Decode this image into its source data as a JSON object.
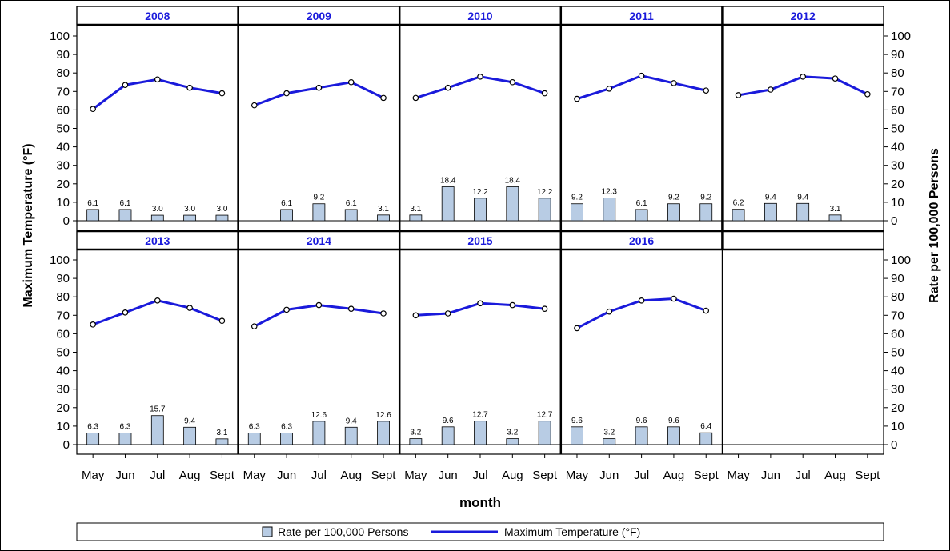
{
  "chart_data": {
    "type": "bar",
    "layout": "panel-grid",
    "ylabel_left": "Maximum Temperature (°F)",
    "ylabel_right": "Rate per 100,000 Persons",
    "xlabel": "month",
    "categories": [
      "May",
      "Jun",
      "Jul",
      "Aug",
      "Sept"
    ],
    "ylim": [
      0,
      100
    ],
    "yticks": [
      0,
      10,
      20,
      30,
      40,
      50,
      60,
      70,
      80,
      90,
      100
    ],
    "grid": false,
    "legend_placement": "bottom",
    "colors": {
      "bar_fill": "#b8cce4",
      "line": "#1a1adb",
      "panel_title": "#1a1adb",
      "marker_fill": "#ffffff"
    },
    "legend": [
      {
        "label": "Rate per 100,000 Persons",
        "kind": "bar"
      },
      {
        "label": "Maximum Temperature (°F)",
        "kind": "line"
      }
    ],
    "panels": [
      {
        "year": "2008",
        "rate": [
          6.1,
          6.1,
          3.0,
          3.0,
          3.0
        ],
        "rate_labels": [
          "6.1",
          "6.1",
          "3.0",
          "3.0",
          "3.0"
        ],
        "temp": [
          60.5,
          73.5,
          76.5,
          72,
          69
        ]
      },
      {
        "year": "2009",
        "rate": [
          null,
          6.1,
          9.2,
          6.1,
          3.1
        ],
        "rate_labels": [
          null,
          "6.1",
          "9.2",
          "6.1",
          "3.1"
        ],
        "temp": [
          62.5,
          69,
          72,
          75,
          66.5
        ]
      },
      {
        "year": "2010",
        "rate": [
          3.1,
          18.4,
          12.2,
          18.4,
          12.2
        ],
        "rate_labels": [
          "3.1",
          "18.4",
          "12.2",
          "18.4",
          "12.2"
        ],
        "temp": [
          66.5,
          72,
          78,
          75,
          69
        ]
      },
      {
        "year": "2011",
        "rate": [
          9.2,
          12.3,
          6.1,
          9.2,
          9.2
        ],
        "rate_labels": [
          "9.2",
          "12.3",
          "6.1",
          "9.2",
          "9.2"
        ],
        "temp": [
          66,
          71.5,
          78.5,
          74.5,
          70.5
        ]
      },
      {
        "year": "2012",
        "rate": [
          6.2,
          9.4,
          9.4,
          3.1,
          null
        ],
        "rate_labels": [
          "6.2",
          "9.4",
          "9.4",
          "3.1",
          null
        ],
        "temp": [
          68,
          71,
          78,
          77,
          68.5
        ]
      },
      {
        "year": "2013",
        "rate": [
          6.3,
          6.3,
          15.7,
          9.4,
          3.1
        ],
        "rate_labels": [
          "6.3",
          "6.3",
          "15.7",
          "9.4",
          "3.1"
        ],
        "temp": [
          65,
          71.5,
          78,
          74,
          67
        ]
      },
      {
        "year": "2014",
        "rate": [
          6.3,
          6.3,
          12.6,
          9.4,
          12.6
        ],
        "rate_labels": [
          "6.3",
          "6.3",
          "12.6",
          "9.4",
          "12.6"
        ],
        "temp": [
          64,
          73,
          75.5,
          73.5,
          71
        ]
      },
      {
        "year": "2015",
        "rate": [
          3.2,
          9.6,
          12.7,
          3.2,
          12.7
        ],
        "rate_labels": [
          "3.2",
          "9.6",
          "12.7",
          "3.2",
          "12.7"
        ],
        "temp": [
          70,
          71,
          76.5,
          75.5,
          73.5
        ]
      },
      {
        "year": "2016",
        "rate": [
          9.6,
          3.2,
          9.6,
          9.6,
          6.4
        ],
        "rate_labels": [
          "9.6",
          "3.2",
          "9.6",
          "9.6",
          "6.4"
        ],
        "temp": [
          63,
          72,
          78,
          79,
          72.5
        ]
      },
      {
        "year": "",
        "rate": [],
        "rate_labels": [],
        "temp": []
      }
    ]
  }
}
